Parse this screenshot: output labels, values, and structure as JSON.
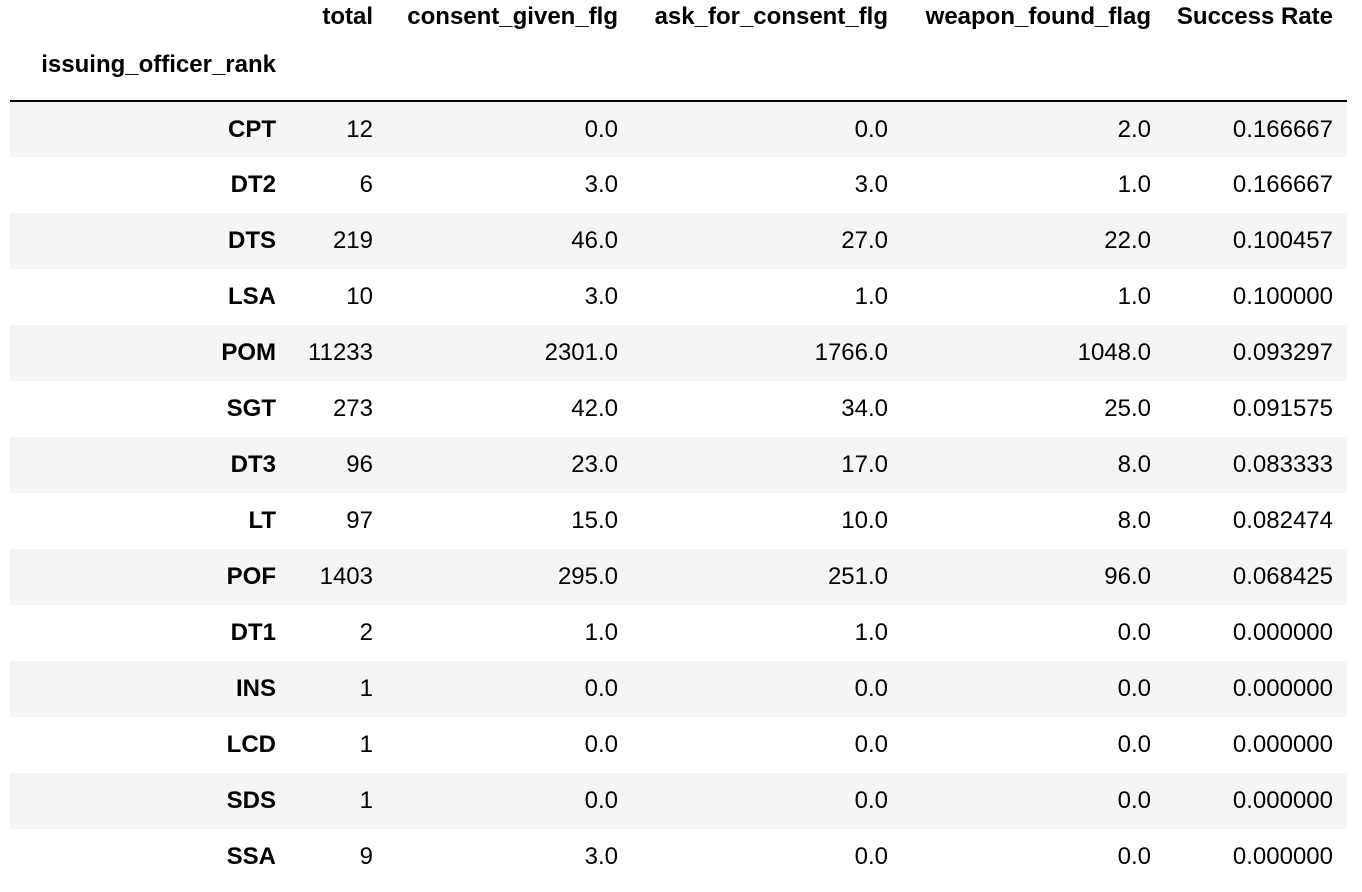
{
  "index_name": "issuing_officer_rank",
  "columns": [
    "total",
    "consent_given_flg",
    "ask_for_consent_flg",
    "weapon_found_flag",
    "Success Rate"
  ],
  "rows": [
    {
      "rank": "CPT",
      "total": "12",
      "consent": "0.0",
      "ask": "0.0",
      "weapon": "2.0",
      "rate": "0.166667"
    },
    {
      "rank": "DT2",
      "total": "6",
      "consent": "3.0",
      "ask": "3.0",
      "weapon": "1.0",
      "rate": "0.166667"
    },
    {
      "rank": "DTS",
      "total": "219",
      "consent": "46.0",
      "ask": "27.0",
      "weapon": "22.0",
      "rate": "0.100457"
    },
    {
      "rank": "LSA",
      "total": "10",
      "consent": "3.0",
      "ask": "1.0",
      "weapon": "1.0",
      "rate": "0.100000"
    },
    {
      "rank": "POM",
      "total": "11233",
      "consent": "2301.0",
      "ask": "1766.0",
      "weapon": "1048.0",
      "rate": "0.093297"
    },
    {
      "rank": "SGT",
      "total": "273",
      "consent": "42.0",
      "ask": "34.0",
      "weapon": "25.0",
      "rate": "0.091575"
    },
    {
      "rank": "DT3",
      "total": "96",
      "consent": "23.0",
      "ask": "17.0",
      "weapon": "8.0",
      "rate": "0.083333"
    },
    {
      "rank": "LT",
      "total": "97",
      "consent": "15.0",
      "ask": "10.0",
      "weapon": "8.0",
      "rate": "0.082474"
    },
    {
      "rank": "POF",
      "total": "1403",
      "consent": "295.0",
      "ask": "251.0",
      "weapon": "96.0",
      "rate": "0.068425"
    },
    {
      "rank": "DT1",
      "total": "2",
      "consent": "1.0",
      "ask": "1.0",
      "weapon": "0.0",
      "rate": "0.000000"
    },
    {
      "rank": "INS",
      "total": "1",
      "consent": "0.0",
      "ask": "0.0",
      "weapon": "0.0",
      "rate": "0.000000"
    },
    {
      "rank": "LCD",
      "total": "1",
      "consent": "0.0",
      "ask": "0.0",
      "weapon": "0.0",
      "rate": "0.000000"
    },
    {
      "rank": "SDS",
      "total": "1",
      "consent": "0.0",
      "ask": "0.0",
      "weapon": "0.0",
      "rate": "0.000000"
    },
    {
      "rank": "SSA",
      "total": "9",
      "consent": "3.0",
      "ask": "0.0",
      "weapon": "0.0",
      "rate": "0.000000"
    }
  ],
  "colors": {
    "row_stripe": "#f5f5f5",
    "row_plain": "#ffffff",
    "header_rule": "#000000"
  }
}
